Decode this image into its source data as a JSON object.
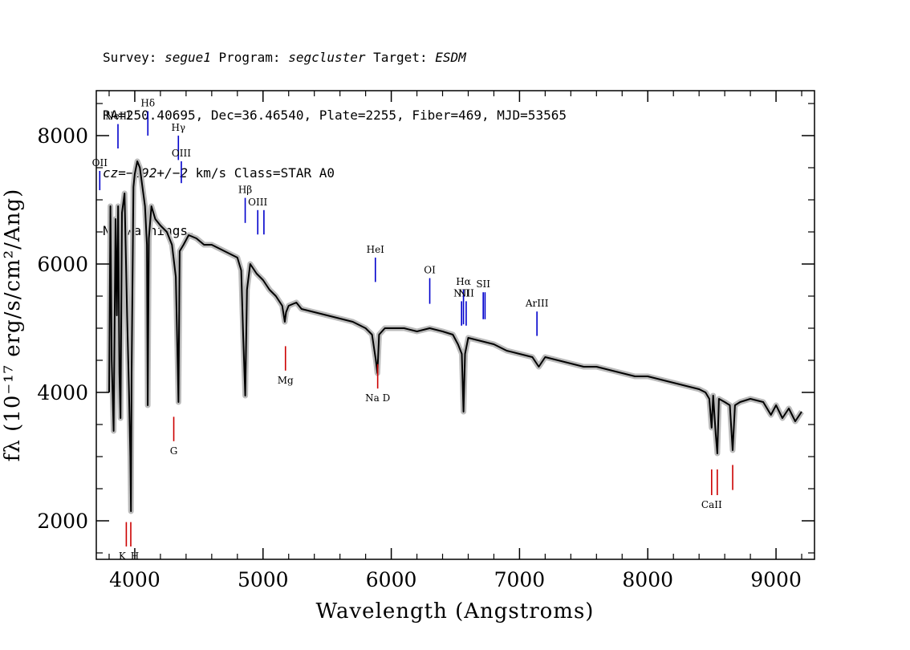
{
  "header": {
    "line1_prefix": "Survey: ",
    "survey": "segue1",
    "program_prefix": " Program: ",
    "program": "segcluster",
    "target_prefix": " Target: ",
    "target": "ESDM",
    "line2": "RA=250.40695, Dec=36.46540, Plate=2255, Fiber=469, MJD=53565",
    "line3_cz": "cz=−292+/−2",
    "line3_rest": " km/s Class=STAR A0",
    "line4": "No warnings."
  },
  "chart_data": {
    "type": "line",
    "title": "",
    "xlabel": "Wavelength (Angstroms)",
    "ylabel": "fλ (10⁻¹⁷ erg/s/cm²/Ang)",
    "xlim": [
      3700,
      9300
    ],
    "ylim": [
      1400,
      8700
    ],
    "x_ticks": [
      4000,
      5000,
      6000,
      7000,
      8000,
      9000
    ],
    "y_ticks": [
      2000,
      4000,
      6000,
      8000
    ],
    "grid": false,
    "series": [
      {
        "color": "#000000",
        "error_band_color": "#bbbbbb",
        "x": [
          3800,
          3810,
          3820,
          3835,
          3850,
          3860,
          3870,
          3880,
          3889,
          3900,
          3920,
          3940,
          3955,
          3965,
          3970,
          3975,
          3990,
          4000,
          4020,
          4040,
          4060,
          4080,
          4095,
          4101,
          4110,
          4130,
          4160,
          4200,
          4250,
          4290,
          4320,
          4335,
          4341,
          4350,
          4380,
          4420,
          4480,
          4540,
          4600,
          4650,
          4700,
          4750,
          4800,
          4830,
          4845,
          4861,
          4875,
          4900,
          4950,
          5000,
          5050,
          5100,
          5150,
          5170,
          5180,
          5200,
          5260,
          5300,
          5400,
          5500,
          5600,
          5700,
          5800,
          5850,
          5880,
          5892,
          5905,
          5950,
          6000,
          6100,
          6200,
          6300,
          6400,
          6480,
          6520,
          6550,
          6563,
          6575,
          6600,
          6700,
          6800,
          6900,
          7000,
          7100,
          7150,
          7200,
          7300,
          7400,
          7500,
          7600,
          7700,
          7800,
          7900,
          8000,
          8100,
          8200,
          8300,
          8400,
          8450,
          8480,
          8498,
          8510,
          8530,
          8542,
          8555,
          8600,
          8640,
          8662,
          8680,
          8720,
          8800,
          8900,
          8960,
          9000,
          9050,
          9100,
          9150,
          9200
        ],
        "values": [
          4000,
          6900,
          4500,
          3400,
          6700,
          5200,
          6900,
          4300,
          3600,
          6800,
          7100,
          5200,
          4000,
          3000,
          2150,
          4300,
          7200,
          7400,
          7600,
          7500,
          7200,
          6900,
          6300,
          3800,
          6400,
          6900,
          6700,
          6600,
          6500,
          6300,
          5800,
          4400,
          3850,
          6200,
          6300,
          6450,
          6400,
          6300,
          6300,
          6250,
          6200,
          6150,
          6100,
          5900,
          4900,
          3950,
          5600,
          6000,
          5850,
          5750,
          5600,
          5500,
          5350,
          5100,
          5250,
          5350,
          5400,
          5300,
          5250,
          5200,
          5150,
          5100,
          5000,
          4900,
          4500,
          4300,
          4900,
          5000,
          5000,
          5000,
          4950,
          5000,
          4950,
          4900,
          4750,
          4600,
          3700,
          4600,
          4850,
          4800,
          4750,
          4650,
          4600,
          4550,
          4400,
          4550,
          4500,
          4450,
          4400,
          4400,
          4350,
          4300,
          4250,
          4250,
          4200,
          4150,
          4100,
          4050,
          4000,
          3900,
          3450,
          3950,
          3350,
          3050,
          3900,
          3850,
          3800,
          3100,
          3800,
          3850,
          3900,
          3850,
          3650,
          3800,
          3600,
          3750,
          3550,
          3700
        ]
      }
    ],
    "emission_lines": [
      {
        "label": "OII",
        "x": 3727,
        "y_top": 7450,
        "y_bottom": 7150
      },
      {
        "label": "NeIII",
        "x": 3869,
        "y_top": 8180,
        "y_bottom": 7800
      },
      {
        "label": "Hδ",
        "x": 4102,
        "y_top": 8380,
        "y_bottom": 8000
      },
      {
        "label": "Hγ",
        "x": 4340,
        "y_top": 8000,
        "y_bottom": 7620
      },
      {
        "label": "OIII",
        "x": 4363,
        "y_top": 7600,
        "y_bottom": 7260
      },
      {
        "label": "Hβ",
        "x": 4861,
        "y_top": 7030,
        "y_bottom": 6640
      },
      {
        "label": "OIII",
        "x": 4959,
        "y_top": 6840,
        "y_bottom": 6460
      },
      {
        "label": "",
        "x": 5007,
        "y_top": 6840,
        "y_bottom": 6460
      },
      {
        "label": "HeI",
        "x": 5876,
        "y_top": 6100,
        "y_bottom": 5720
      },
      {
        "label": "OI",
        "x": 6300,
        "y_top": 5780,
        "y_bottom": 5380
      },
      {
        "label": "NII",
        "x": 6548,
        "y_top": 5420,
        "y_bottom": 5040
      },
      {
        "label": "Hα",
        "x": 6563,
        "y_top": 5600,
        "y_bottom": 5060
      },
      {
        "label": "NII",
        "x": 6584,
        "y_top": 5420,
        "y_bottom": 5040
      },
      {
        "label": "SII",
        "x": 6717,
        "y_top": 5560,
        "y_bottom": 5140
      },
      {
        "label": "",
        "x": 6731,
        "y_top": 5560,
        "y_bottom": 5140
      },
      {
        "label": "ArIII",
        "x": 7136,
        "y_top": 5260,
        "y_bottom": 4880
      }
    ],
    "absorption_lines": [
      {
        "label": "K",
        "x": 3934,
        "y_top": 1980,
        "y_bottom": 1600
      },
      {
        "label": "H",
        "x": 3969,
        "y_top": 1980,
        "y_bottom": 1600
      },
      {
        "label": "G",
        "x": 4304,
        "y_top": 3620,
        "y_bottom": 3240
      },
      {
        "label": "Mg",
        "x": 5175,
        "y_top": 4720,
        "y_bottom": 4340
      },
      {
        "label": "Na D",
        "x": 5894,
        "y_top": 4440,
        "y_bottom": 4060
      },
      {
        "label": "CaII",
        "x": 8498,
        "y_top": 2800,
        "y_bottom": 2400
      },
      {
        "label": "",
        "x": 8542,
        "y_top": 2800,
        "y_bottom": 2400
      },
      {
        "label": "",
        "x": 8662,
        "y_top": 2870,
        "y_bottom": 2480
      }
    ],
    "emission_color": "#0000cc",
    "absorption_color": "#cc0000"
  }
}
